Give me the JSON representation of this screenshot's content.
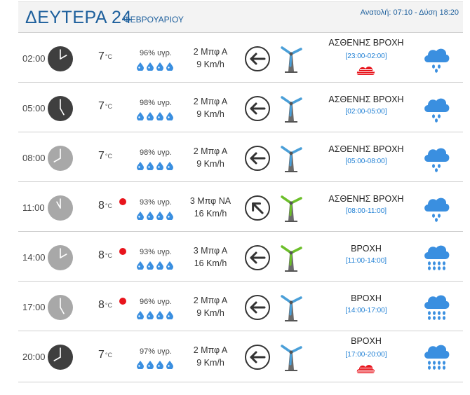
{
  "header": {
    "day": "ΔΕΥΤΕΡΑ 24",
    "month": "ΦΕΒΡΟΥΑΡΙΟΥ",
    "sun": "Ανατολή: 07:10 - Δύση 18:20"
  },
  "colors": {
    "accent": "#1d5f9c",
    "range_text": "#1e7fd4",
    "drop": "#3a8fe0",
    "rain_cloud": "#3a8fe0",
    "turbine_blue": "#4a9fd8",
    "turbine_green": "#6cbf2a",
    "dot_red": "#e8141c",
    "clock_night": "#3f3f3f",
    "clock_day": "#a8a8a8",
    "radar_red": "#e8141c"
  },
  "rows": [
    {
      "time": "02:00",
      "clock": "night",
      "hour": 2,
      "temp": "7",
      "unit": "°C",
      "warn_dot": false,
      "humidity": "96% υγρ.",
      "drops": 4,
      "wind_force": "2 Μπφ Α",
      "wind_speed": "9 Km/h",
      "wind_direction": "E",
      "turbine": "blue",
      "description": "ΑΣΘΕΝΗΣ ΒΡΟΧΗ",
      "range": "[23:00-02:00]",
      "radar_icon": true,
      "weather_icon": "light-rain-cloud"
    },
    {
      "time": "05:00",
      "clock": "night",
      "hour": 5,
      "temp": "7",
      "unit": "°C",
      "warn_dot": false,
      "humidity": "98% υγρ.",
      "drops": 4,
      "wind_force": "2 Μπφ Α",
      "wind_speed": "9 Km/h",
      "wind_direction": "E",
      "turbine": "blue",
      "description": "ΑΣΘΕΝΗΣ ΒΡΟΧΗ",
      "range": "[02:00-05:00]",
      "radar_icon": false,
      "weather_icon": "light-rain-cloud"
    },
    {
      "time": "08:00",
      "clock": "day",
      "hour": 8,
      "temp": "7",
      "unit": "°C",
      "warn_dot": false,
      "humidity": "98% υγρ.",
      "drops": 4,
      "wind_force": "2 Μπφ Α",
      "wind_speed": "9 Km/h",
      "wind_direction": "E",
      "turbine": "blue",
      "description": "ΑΣΘΕΝΗΣ ΒΡΟΧΗ",
      "range": "[05:00-08:00]",
      "radar_icon": false,
      "weather_icon": "light-rain-cloud"
    },
    {
      "time": "11:00",
      "clock": "day",
      "hour": 11,
      "temp": "8",
      "unit": "°C",
      "warn_dot": true,
      "humidity": "93% υγρ.",
      "drops": 4,
      "wind_force": "3 Μπφ ΝΑ",
      "wind_speed": "16 Km/h",
      "wind_direction": "SE",
      "turbine": "green",
      "description": "ΑΣΘΕΝΗΣ ΒΡΟΧΗ",
      "range": "[08:00-11:00]",
      "radar_icon": false,
      "weather_icon": "light-rain-cloud"
    },
    {
      "time": "14:00",
      "clock": "day",
      "hour": 14,
      "temp": "8",
      "unit": "°C",
      "warn_dot": true,
      "humidity": "93% υγρ.",
      "drops": 4,
      "wind_force": "3 Μπφ Α",
      "wind_speed": "16 Km/h",
      "wind_direction": "E",
      "turbine": "green",
      "description": "ΒΡΟΧΗ",
      "range": "[11:00-14:00]",
      "radar_icon": false,
      "weather_icon": "rain-cloud"
    },
    {
      "time": "17:00",
      "clock": "day",
      "hour": 17,
      "temp": "8",
      "unit": "°C",
      "warn_dot": true,
      "humidity": "96% υγρ.",
      "drops": 4,
      "wind_force": "2 Μπφ Α",
      "wind_speed": "9 Km/h",
      "wind_direction": "E",
      "turbine": "blue",
      "description": "ΒΡΟΧΗ",
      "range": "[14:00-17:00]",
      "radar_icon": false,
      "weather_icon": "rain-cloud"
    },
    {
      "time": "20:00",
      "clock": "night",
      "hour": 20,
      "temp": "7",
      "unit": "°C",
      "warn_dot": false,
      "humidity": "97% υγρ.",
      "drops": 4,
      "wind_force": "2 Μπφ Α",
      "wind_speed": "9 Km/h",
      "wind_direction": "E",
      "turbine": "blue",
      "description": "ΒΡΟΧΗ",
      "range": "[17:00-20:00]",
      "radar_icon": true,
      "weather_icon": "rain-cloud"
    }
  ]
}
